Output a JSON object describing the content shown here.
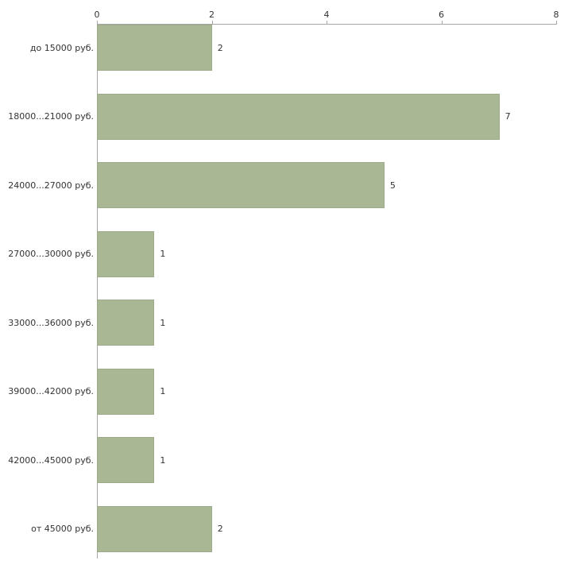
{
  "chart_data": {
    "type": "bar",
    "orientation": "horizontal",
    "title": "",
    "xlabel": "",
    "ylabel": "",
    "categories": [
      "до 15000 руб.",
      "18000...21000 руб.",
      "24000...27000 руб.",
      "27000...30000 руб.",
      "33000...36000 руб.",
      "39000...42000 руб.",
      "42000...45000 руб.",
      "от 45000 руб."
    ],
    "values": [
      2,
      7,
      5,
      1,
      1,
      1,
      1,
      2
    ],
    "value_labels": [
      "2",
      "7",
      "5",
      "1",
      "1",
      "1",
      "1",
      "2"
    ],
    "xlim": [
      0,
      8
    ],
    "xticks": [
      "0",
      "2",
      "4",
      "6",
      "8"
    ],
    "xticks_position": "top",
    "grid": false,
    "legend": false,
    "colors": {
      "bar_fill": "#a9b795",
      "bar_border": "#9dab8b",
      "axis_line": "#a6a6a6",
      "text": "#333333",
      "background": "#ffffff"
    }
  }
}
